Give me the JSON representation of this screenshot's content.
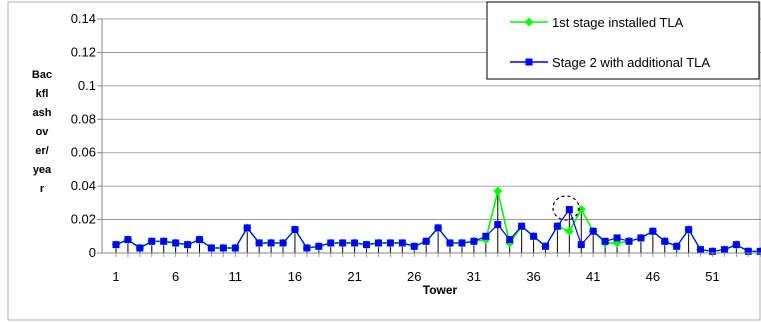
{
  "chart_data": {
    "type": "line",
    "title": "",
    "xlabel": "Tower",
    "ylabel": "Backflashover/year",
    "ylabel_lines": [
      "Bac",
      "kfl",
      "ash",
      "ov",
      "er/",
      "yea",
      "r"
    ],
    "ylim": [
      0,
      0.14
    ],
    "yticks": [
      "0",
      "0.02",
      "0.04",
      "0.06",
      "0.08",
      "0.1",
      "0.12",
      "0.14"
    ],
    "xticks": [
      "1",
      "6",
      "11",
      "16",
      "21",
      "26",
      "31",
      "36",
      "41",
      "46",
      "51"
    ],
    "grid": true,
    "legend_position": "top-right",
    "x": [
      1,
      2,
      3,
      4,
      5,
      6,
      7,
      8,
      9,
      10,
      11,
      12,
      13,
      14,
      15,
      16,
      17,
      18,
      19,
      20,
      21,
      22,
      23,
      24,
      25,
      26,
      27,
      28,
      29,
      30,
      31,
      32,
      33,
      34,
      35,
      36,
      37,
      38,
      39,
      40,
      41,
      42,
      43,
      44,
      45,
      46,
      47,
      48,
      49,
      50,
      51,
      52,
      53,
      54,
      55
    ],
    "series": [
      {
        "name": "1st stage installed TLA",
        "color": "#00ff00",
        "marker": "diamond",
        "values": [
          0.005,
          0.008,
          0.003,
          0.007,
          0.007,
          0.006,
          0.005,
          0.008,
          0.003,
          0.003,
          0.003,
          0.015,
          0.006,
          0.006,
          0.006,
          0.014,
          0.003,
          0.004,
          0.006,
          0.006,
          0.006,
          0.005,
          0.006,
          0.006,
          0.006,
          0.004,
          0.007,
          0.015,
          0.006,
          0.006,
          0.007,
          0.008,
          0.037,
          0.006,
          0.016,
          0.01,
          0.004,
          0.016,
          0.013,
          0.026,
          0.013,
          0.006,
          0.006,
          0.007,
          0.009,
          0.013,
          0.007,
          0.004,
          0.014,
          0.002,
          0.001,
          0.002,
          0.005,
          0.001,
          0.001
        ]
      },
      {
        "name": "Stage 2 with additional TLA",
        "color": "#0000ff",
        "marker": "square",
        "values": [
          0.005,
          0.008,
          0.003,
          0.007,
          0.007,
          0.006,
          0.005,
          0.008,
          0.003,
          0.003,
          0.003,
          0.015,
          0.006,
          0.006,
          0.006,
          0.014,
          0.003,
          0.004,
          0.006,
          0.006,
          0.006,
          0.005,
          0.006,
          0.006,
          0.006,
          0.004,
          0.007,
          0.015,
          0.006,
          0.006,
          0.007,
          0.01,
          0.017,
          0.008,
          0.016,
          0.01,
          0.004,
          0.016,
          0.026,
          0.005,
          0.013,
          0.007,
          0.009,
          0.007,
          0.009,
          0.013,
          0.007,
          0.004,
          0.014,
          0.002,
          0.001,
          0.002,
          0.005,
          0.001,
          0.001
        ]
      }
    ],
    "annotation": "dashed circle around tower 39 peak"
  }
}
